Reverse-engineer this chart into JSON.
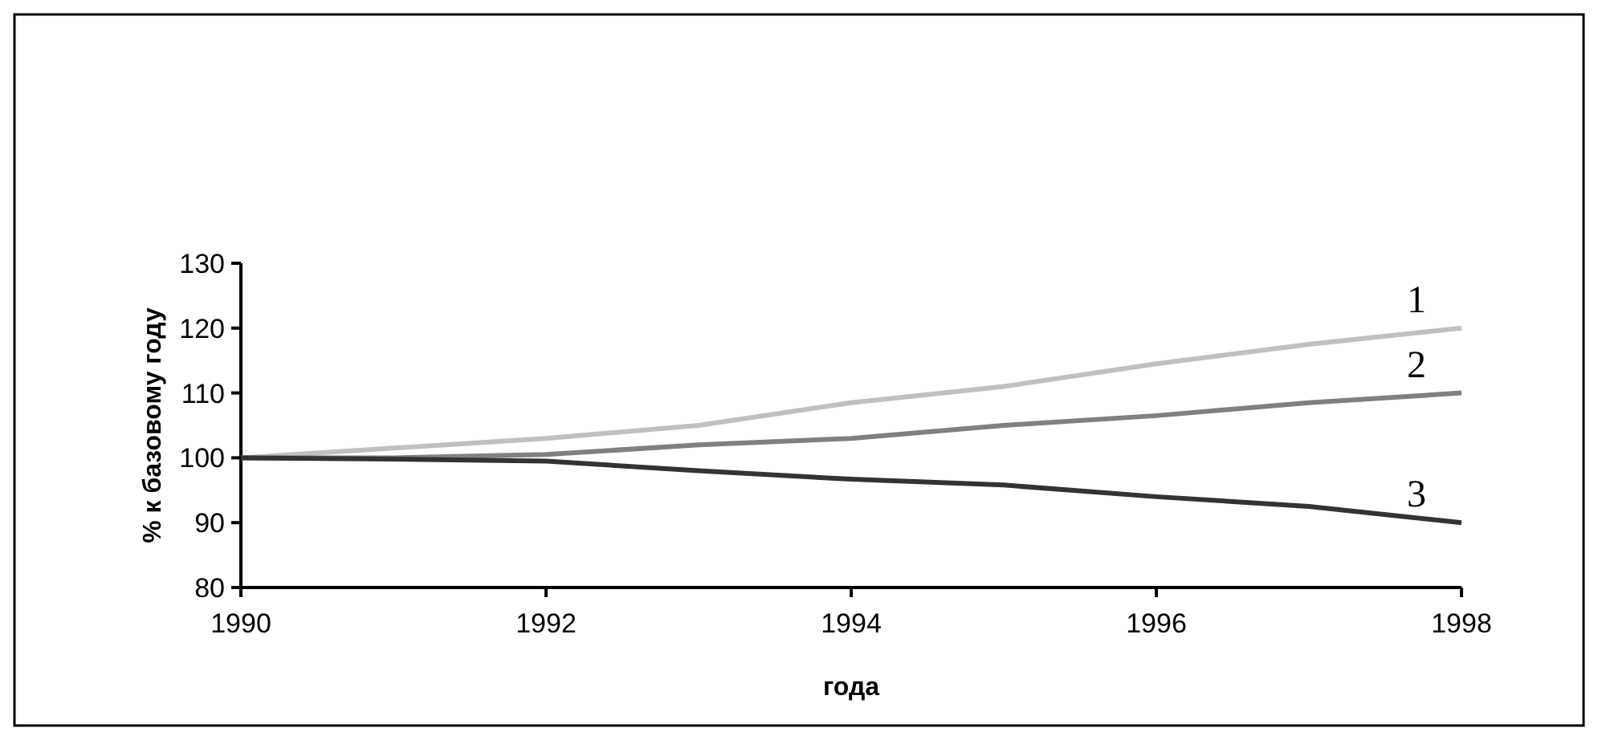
{
  "chart_data": {
    "type": "line",
    "xlabel": "года",
    "ylabel": "% к базовому году",
    "x": [
      1990,
      1991,
      1992,
      1993,
      1994,
      1995,
      1996,
      1997,
      1998
    ],
    "series": [
      {
        "name": "1",
        "color": "#c0c0c0",
        "values": [
          100,
          101.5,
          103,
          105,
          108.5,
          111,
          114.5,
          117.5,
          120
        ]
      },
      {
        "name": "2",
        "color": "#808080",
        "values": [
          100,
          100,
          100.5,
          102,
          103,
          105,
          106.5,
          108.5,
          110
        ]
      },
      {
        "name": "3",
        "color": "#333333",
        "values": [
          100,
          99.8,
          99.5,
          98,
          96.7,
          95.8,
          94,
          92.5,
          90
        ]
      }
    ],
    "xlim": [
      1990,
      1998
    ],
    "xticks": [
      1990,
      1992,
      1994,
      1996,
      1998
    ],
    "ylim": [
      80,
      130
    ],
    "yticks": [
      80,
      90,
      100,
      110,
      120,
      130
    ],
    "grid": false,
    "legend": false,
    "marker": "none",
    "line_style": "solid"
  }
}
